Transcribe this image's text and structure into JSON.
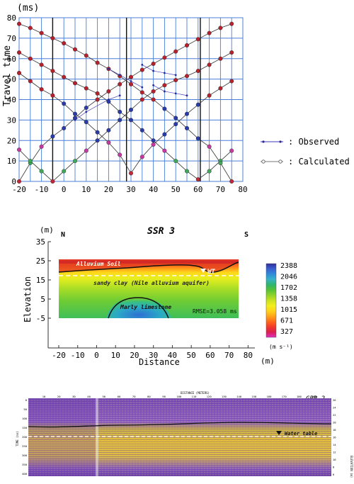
{
  "chart_data": [
    {
      "type": "line",
      "ylabel": "Travel time",
      "yunit": "(ms)",
      "xlim": [
        -20,
        80
      ],
      "ylim": [
        0,
        80
      ],
      "xticks": [
        -20,
        -10,
        0,
        10,
        20,
        30,
        40,
        50,
        60,
        70,
        80
      ],
      "yticks": [
        0,
        10,
        20,
        30,
        40,
        50,
        60,
        70,
        80
      ],
      "shot_positions": [
        -5,
        28,
        61
      ],
      "legend": [
        {
          "label": ": Observed",
          "style": "observed"
        },
        {
          "label": ": Calculated",
          "style": "calculated"
        }
      ],
      "geophones": [
        -20,
        -15,
        -10,
        -5,
        0,
        5,
        10,
        15,
        20,
        25,
        30,
        35,
        40,
        45,
        50,
        55,
        60,
        65,
        70,
        75
      ],
      "series": [
        {
          "shot": -20,
          "values": [
            0,
            9,
            17,
            22,
            26,
            31,
            36,
            40,
            44,
            47.5,
            51,
            54.5,
            57.5,
            60.5,
            63.5,
            66.5,
            69.5,
            72.5,
            75,
            77
          ]
        },
        {
          "shot": -5,
          "values": [
            15.5,
            10,
            5,
            0,
            5,
            10,
            15,
            20,
            25,
            30,
            35,
            40,
            44,
            47,
            49.5,
            51.5,
            54,
            57,
            60,
            63
          ]
        },
        {
          "shot": 28,
          "values": [
            53,
            49,
            45,
            42,
            38,
            33,
            29,
            24,
            19,
            13,
            4,
            12,
            18,
            23,
            28,
            33,
            37.5,
            42,
            45.5,
            49
          ]
        },
        {
          "shot": 61,
          "values": [
            63,
            60,
            57,
            54,
            51,
            48,
            45.5,
            43,
            39,
            34,
            30,
            25,
            20,
            15,
            10,
            5,
            1,
            5,
            10,
            15
          ]
        },
        {
          "shot": 75,
          "values": [
            77,
            75,
            72.5,
            70,
            67.5,
            64.5,
            61.5,
            58,
            55,
            51.5,
            47.5,
            43.5,
            40,
            35.5,
            31,
            26,
            21,
            17,
            9,
            0
          ]
        }
      ],
      "observed_scatter": [
        [
          35,
          57
        ],
        [
          40,
          54
        ],
        [
          45,
          53
        ],
        [
          50,
          52
        ],
        [
          40,
          47
        ],
        [
          45,
          44
        ],
        [
          50,
          43
        ],
        [
          55,
          42
        ],
        [
          20,
          55
        ],
        [
          25,
          52
        ],
        [
          30,
          49
        ],
        [
          35,
          46
        ],
        [
          25,
          42
        ],
        [
          20,
          40
        ],
        [
          10,
          34
        ],
        [
          5,
          30
        ]
      ]
    },
    {
      "type": "heatmap",
      "title": "SSR 3",
      "corner_left": "N",
      "corner_right": "S",
      "yunit": "(m)",
      "xunit": "(m)",
      "ylabel": "Elevation",
      "xlabel": "Distance",
      "xticks": [
        -20,
        -10,
        0,
        10,
        20,
        30,
        40,
        50,
        60,
        70,
        80
      ],
      "yticks": [
        35,
        25,
        15,
        5,
        -5
      ],
      "layers": [
        {
          "label": "Alluvium Soil"
        },
        {
          "label": "sandy clay (Nile alluvium aquifer)"
        },
        {
          "label": "Marly limestone"
        }
      ],
      "wt_label": "WT",
      "rmse": "RMSE=3.058 ms",
      "colorbar": {
        "unit": "(m s⁻¹)",
        "ticks": [
          "2388",
          "2046",
          "1702",
          "1358",
          "1015",
          "671",
          "327"
        ],
        "colors": [
          "#2e2e9e",
          "#3b5fd0",
          "#2f8bd9",
          "#36b4c8",
          "#2fb56b",
          "#55c235",
          "#8fd22a",
          "#c9e21f",
          "#f2ef1c",
          "#ffd21a",
          "#ffa41a",
          "#ff6a1a",
          "#f23a2a",
          "#d91f4e",
          "#e02fbf"
        ]
      }
    },
    {
      "type": "heatmap",
      "title": "GPR 2",
      "xlabel": "DISTANCE (METERS)",
      "ylabel": "TIME (ns)",
      "right_label": "ELEVATION (m)",
      "annotation": "Water table",
      "xticks": [
        "10",
        "20",
        "30",
        "40",
        "50",
        "60",
        "70",
        "80",
        "90",
        "100",
        "110",
        "120",
        "130",
        "140",
        "150",
        "160",
        "170",
        "180",
        "190"
      ],
      "yticks": [
        "0",
        "50",
        "100",
        "150",
        "200",
        "250",
        "300",
        "350",
        "400"
      ],
      "right_ticks": [
        "26",
        "24",
        "22",
        "20",
        "18",
        "16",
        "14",
        "12",
        "10",
        "8",
        "6"
      ]
    }
  ]
}
